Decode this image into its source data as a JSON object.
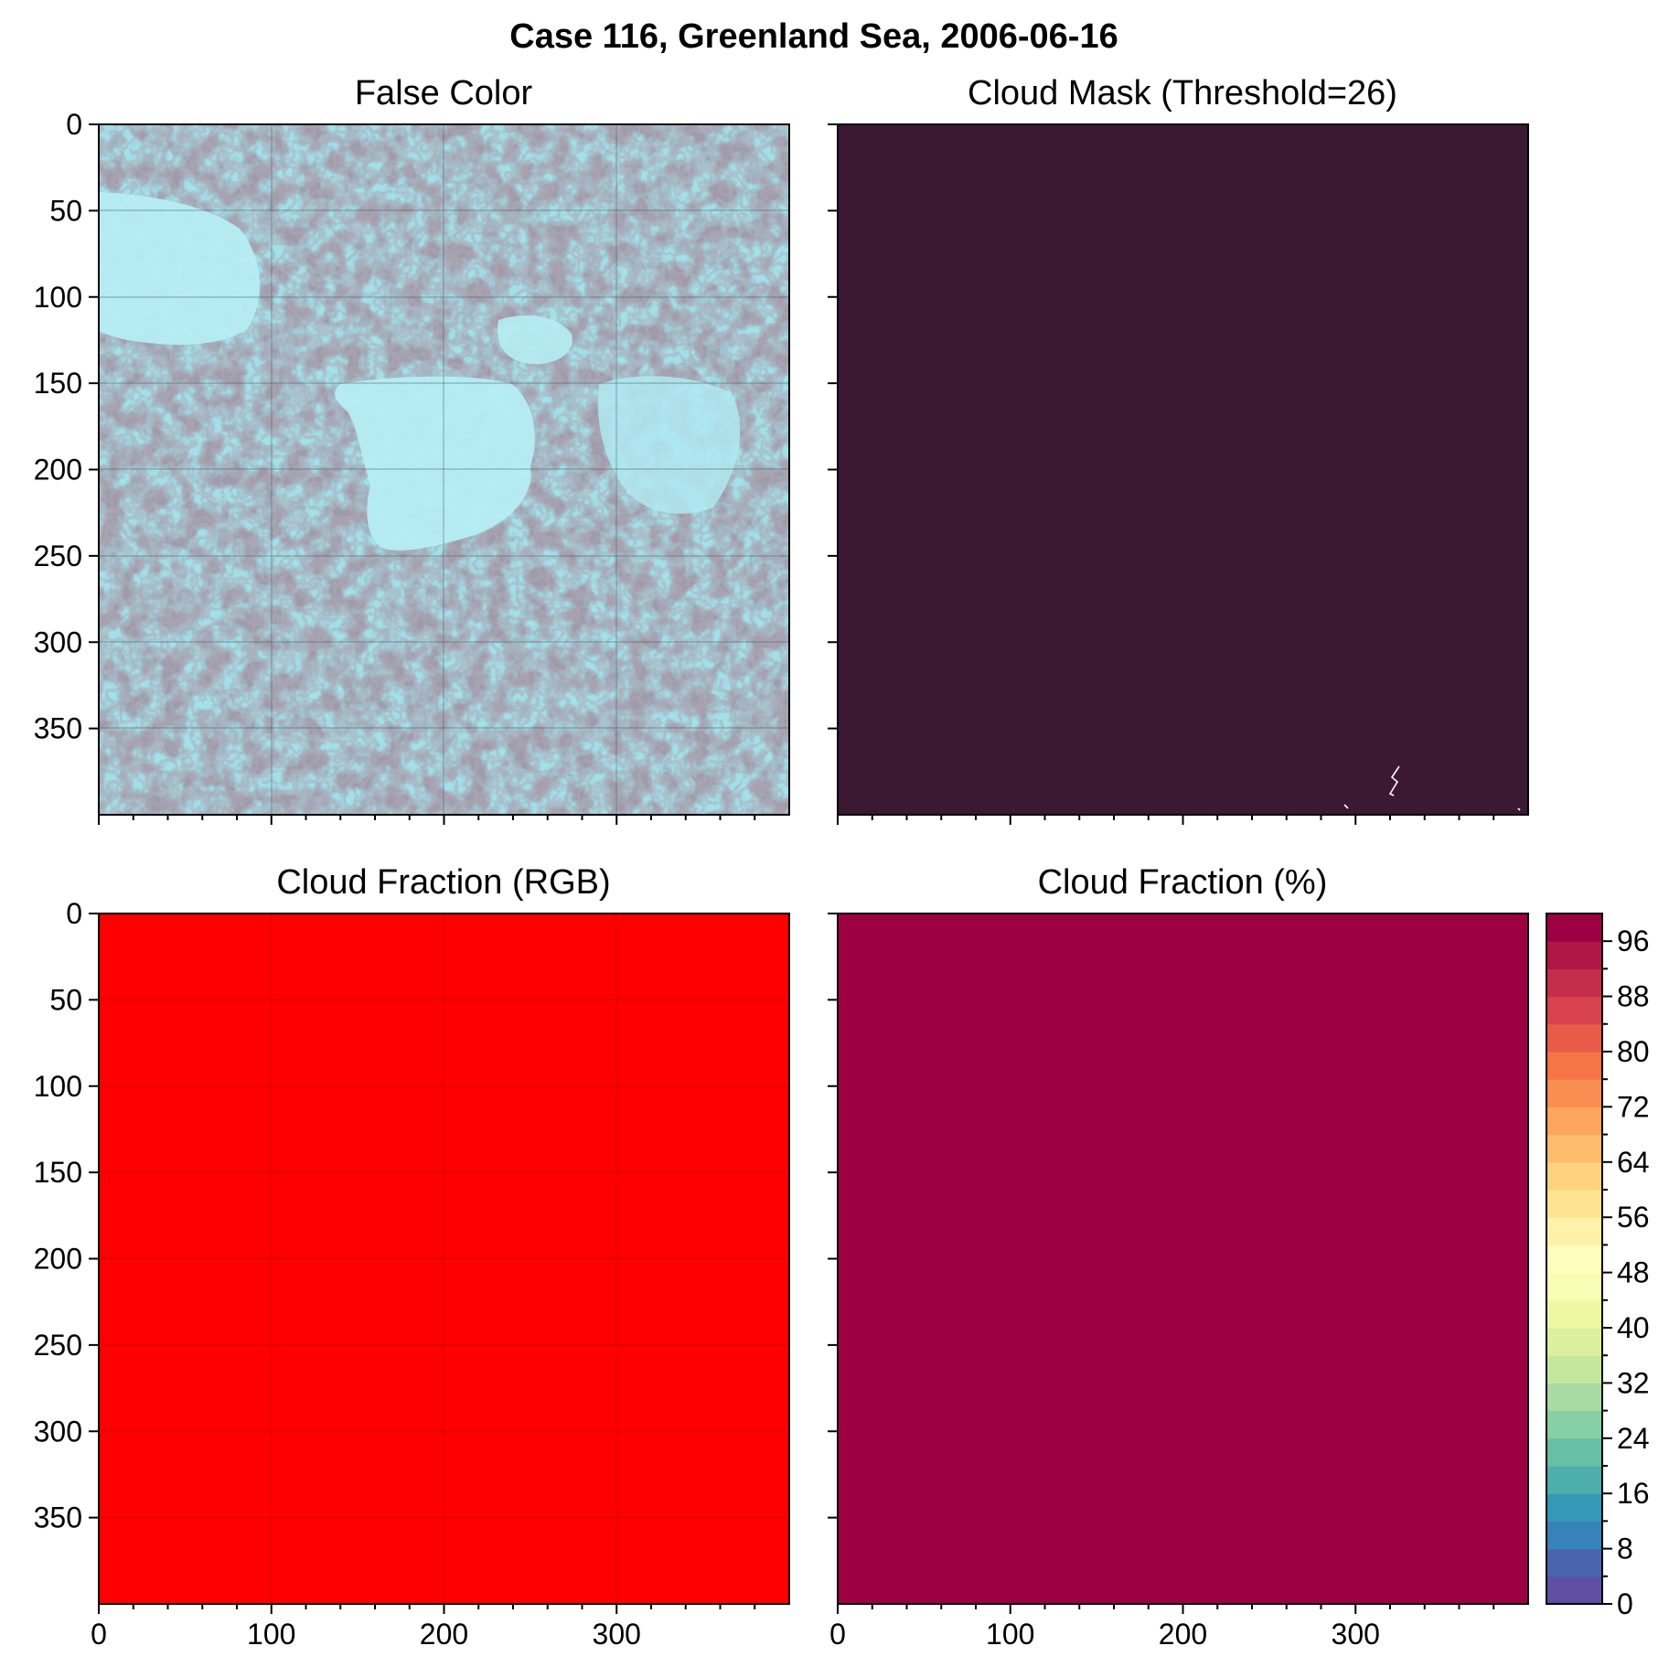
{
  "figure": {
    "title": "Case 116, Greenland Sea, 2006-06-16"
  },
  "colors": {
    "mask_cloud": "#3c1932",
    "cloud_fraction_rgb": "#ff0000",
    "cloud_fraction_pct": "#9e0142",
    "false_color_base": "#a2e0ea",
    "axis_line": "#000000"
  },
  "chart_data": [
    {
      "type": "heatmap",
      "panel": "top-left",
      "title": "False Color",
      "xlabel": "",
      "ylabel": "",
      "xlim": [
        0,
        400
      ],
      "ylim": [
        400,
        0
      ],
      "xticks": [
        "",
        "",
        "",
        ""
      ],
      "yticks": [
        "0",
        "50",
        "100",
        "150",
        "200",
        "250",
        "300",
        "350"
      ],
      "xtick_values": [
        0,
        100,
        200,
        300
      ],
      "ytick_values": [
        0,
        50,
        100,
        150,
        200,
        250,
        300,
        350
      ],
      "grid": true,
      "content": "satellite false-color image: pale cyan sea ice with darker gray leads"
    },
    {
      "type": "heatmap",
      "panel": "top-right",
      "title": "Cloud Mask (Threshold=26)",
      "xlabel": "",
      "ylabel": "",
      "xlim": [
        0,
        400
      ],
      "ylim": [
        400,
        0
      ],
      "xticks": [
        "",
        "",
        "",
        ""
      ],
      "yticks": [
        "",
        "",
        "",
        "",
        "",
        "",
        "",
        ""
      ],
      "xtick_values": [
        0,
        100,
        200,
        300
      ],
      "ytick_values": [
        0,
        50,
        100,
        150,
        200,
        250,
        300,
        350
      ],
      "grid": false,
      "content": "uniform cloudy mask with a few clear pixels near the bottom"
    },
    {
      "type": "heatmap",
      "panel": "bottom-left",
      "title": "Cloud Fraction (RGB)",
      "xlabel": "",
      "ylabel": "",
      "xlim": [
        0,
        400
      ],
      "ylim": [
        400,
        0
      ],
      "xticks": [
        "0",
        "100",
        "200",
        "300"
      ],
      "yticks": [
        "0",
        "50",
        "100",
        "150",
        "200",
        "250",
        "300",
        "350"
      ],
      "xtick_values": [
        0,
        100,
        200,
        300
      ],
      "ytick_values": [
        0,
        50,
        100,
        150,
        200,
        250,
        300,
        350
      ],
      "grid": true,
      "value": 100
    },
    {
      "type": "heatmap",
      "panel": "bottom-right",
      "title": "Cloud Fraction (%)",
      "xlabel": "",
      "ylabel": "",
      "xlim": [
        0,
        400
      ],
      "ylim": [
        400,
        0
      ],
      "xticks": [
        "0",
        "100",
        "200",
        "300"
      ],
      "yticks": [
        "",
        "",
        "",
        "",
        "",
        "",
        "",
        ""
      ],
      "xtick_values": [
        0,
        100,
        200,
        300
      ],
      "ytick_values": [
        0,
        50,
        100,
        150,
        200,
        250,
        300,
        350
      ],
      "grid": false,
      "value": 100,
      "colorbar": {
        "range": [
          0,
          100
        ],
        "levels": 25,
        "ticks": [
          "0",
          "8",
          "16",
          "24",
          "32",
          "40",
          "48",
          "56",
          "64",
          "72",
          "80",
          "88",
          "96"
        ],
        "tick_values": [
          0,
          8,
          16,
          24,
          32,
          40,
          48,
          56,
          64,
          72,
          80,
          88,
          96
        ],
        "colormap": [
          "#5e4fa2",
          "#4a65ad",
          "#3682ba",
          "#3498b6",
          "#4daeab",
          "#67bfa5",
          "#87cfa4",
          "#a8dba3",
          "#c4e79e",
          "#dbf09c",
          "#edf8a3",
          "#f9fcb5",
          "#fefebe",
          "#fff1a7",
          "#fee391",
          "#fed27f",
          "#fdbb6c",
          "#fca55d",
          "#f98e52",
          "#f57547",
          "#e85b48",
          "#d9434d",
          "#c52e4a",
          "#b01747",
          "#9e0142"
        ]
      }
    }
  ]
}
